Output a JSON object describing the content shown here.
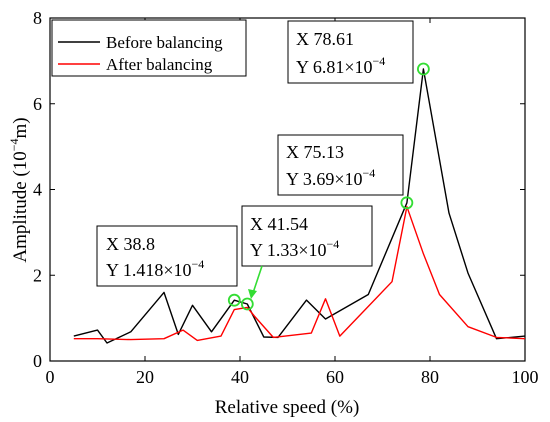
{
  "chart_data": {
    "type": "line",
    "xlabel": "Relative speed (%)",
    "ylabel_main": "Amplitude (10",
    "ylabel_exp": "−4",
    "ylabel_tail": "m)",
    "xlim": [
      0,
      100
    ],
    "ylim": [
      0,
      8
    ],
    "x_ticks": [
      0,
      20,
      40,
      60,
      80,
      100
    ],
    "y_ticks": [
      0,
      2,
      4,
      6,
      8
    ],
    "x_tick_labels": [
      "0",
      "20",
      "40",
      "60",
      "80",
      "100"
    ],
    "y_tick_labels": [
      "0",
      "2",
      "4",
      "6",
      "8"
    ],
    "legend_position": "top-left",
    "series": [
      {
        "name": "Before balancing",
        "color": "#000000",
        "x": [
          5,
          10,
          12,
          17,
          24,
          27,
          30,
          34,
          38.8,
          41.54,
          45,
          48,
          54,
          58,
          67,
          75.13,
          78.61,
          84,
          88,
          94,
          100
        ],
        "y": [
          0.58,
          0.72,
          0.42,
          0.68,
          1.6,
          0.62,
          1.3,
          0.68,
          1.418,
          1.33,
          0.56,
          0.55,
          1.42,
          0.98,
          1.55,
          3.69,
          6.81,
          3.45,
          2.05,
          0.52,
          0.58
        ]
      },
      {
        "name": "After balancing",
        "color": "#ff0000",
        "x": [
          5,
          10,
          17,
          24,
          28,
          31,
          36,
          38.8,
          41.54,
          43,
          47,
          55,
          58,
          61,
          72,
          75.13,
          78.61,
          82,
          88,
          94,
          100
        ],
        "y": [
          0.52,
          0.52,
          0.5,
          0.52,
          0.72,
          0.48,
          0.58,
          1.2,
          1.25,
          1.05,
          0.55,
          0.65,
          1.45,
          0.58,
          1.85,
          3.6,
          2.5,
          1.55,
          0.8,
          0.55,
          0.52
        ]
      }
    ],
    "markers": [
      {
        "x": 38.8,
        "y": 1.418,
        "color": "#33dd33"
      },
      {
        "x": 41.54,
        "y": 1.33,
        "color": "#33dd33"
      },
      {
        "x": 75.13,
        "y": 3.69,
        "color": "#33dd33"
      },
      {
        "x": 78.61,
        "y": 6.81,
        "color": "#33dd33"
      }
    ],
    "annotations": [
      {
        "line1": "X 38.8",
        "line2_main": "Y 1.418×10",
        "line2_exp": "−4"
      },
      {
        "line1": "X 41.54",
        "line2_main": "Y 1.33×10",
        "line2_exp": "−4"
      },
      {
        "line1": "X 75.13",
        "line2_main": "Y 3.69×10",
        "line2_exp": "−4"
      },
      {
        "line1": "X 78.61",
        "line2_main": "Y 6.81×10",
        "line2_exp": "−4"
      }
    ],
    "annotation_arrow_color": "#33dd33"
  }
}
